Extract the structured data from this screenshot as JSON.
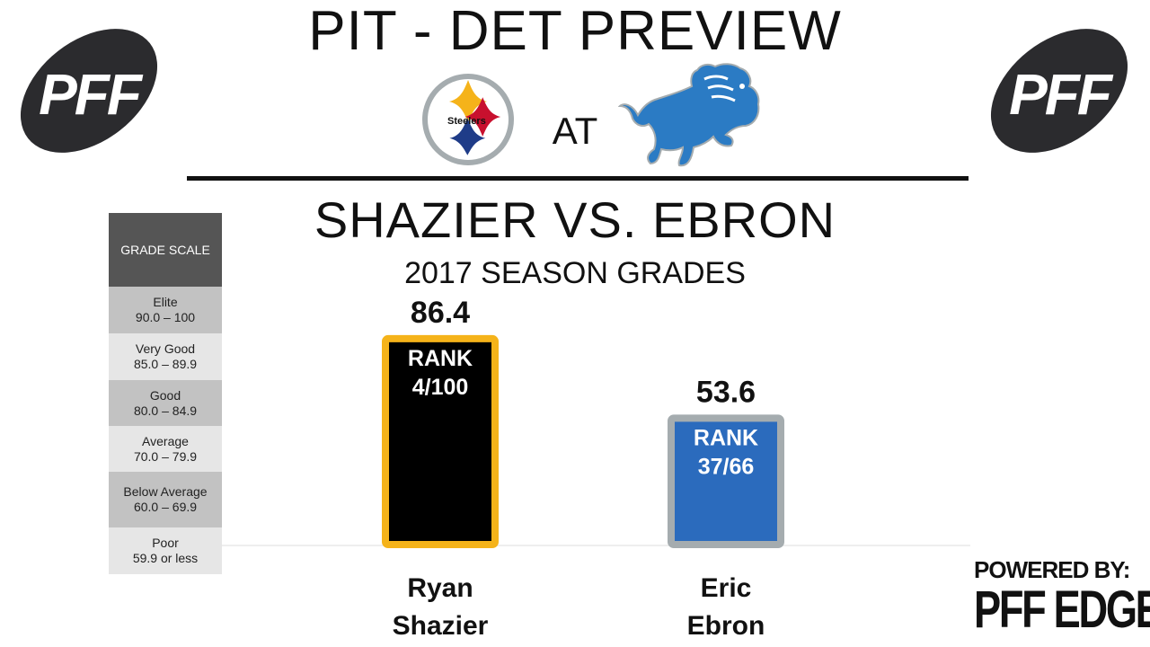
{
  "header": {
    "title": "PIT - DET PREVIEW",
    "at_label": "AT",
    "pff_logo_text": "PFF",
    "steelers_logo_text": "Steelers"
  },
  "matchup_title": "SHAZIER VS. EBRON",
  "subtitle": "2017 SEASON GRADES",
  "grade_scale": {
    "header": "GRADE SCALE",
    "rows": [
      {
        "label": "Elite",
        "range": "90.0 – 100",
        "color": "#c2c2c2"
      },
      {
        "label": "Very Good",
        "range": "85.0 – 89.9",
        "color": "#e6e6e6"
      },
      {
        "label": "Good",
        "range": "80.0 – 84.9",
        "color": "#c2c2c2"
      },
      {
        "label": "Average",
        "range": "70.0 – 79.9",
        "color": "#e6e6e6"
      },
      {
        "label": "Below Average",
        "range": "60.0 – 69.9",
        "color": "#c2c2c2"
      },
      {
        "label": "Poor",
        "range": "59.9 or less",
        "color": "#e6e6e6"
      }
    ],
    "header_color": "#555555"
  },
  "chart_data": {
    "type": "bar",
    "title": "SHAZIER VS. EBRON",
    "subtitle": "2017 SEASON GRADES",
    "categories": [
      "Ryan Shazier",
      "Eric Ebron"
    ],
    "category_lines": [
      [
        "Ryan",
        "Shazier"
      ],
      [
        "Eric",
        "Ebron"
      ]
    ],
    "values": [
      86.4,
      53.6
    ],
    "value_labels": [
      "86.4",
      "53.6"
    ],
    "rank_label": "RANK",
    "ranks": [
      "4/100",
      "37/66"
    ],
    "fill_colors": [
      "#000000",
      "#2b6bbd"
    ],
    "border_colors": [
      "#f5b31a",
      "#a5acaf"
    ],
    "xlabel": "",
    "ylabel": "",
    "ylim": [
      0,
      100
    ],
    "grid": false
  },
  "footer": {
    "powered_by": "POWERED BY:",
    "brand": "PFF EDGE"
  }
}
